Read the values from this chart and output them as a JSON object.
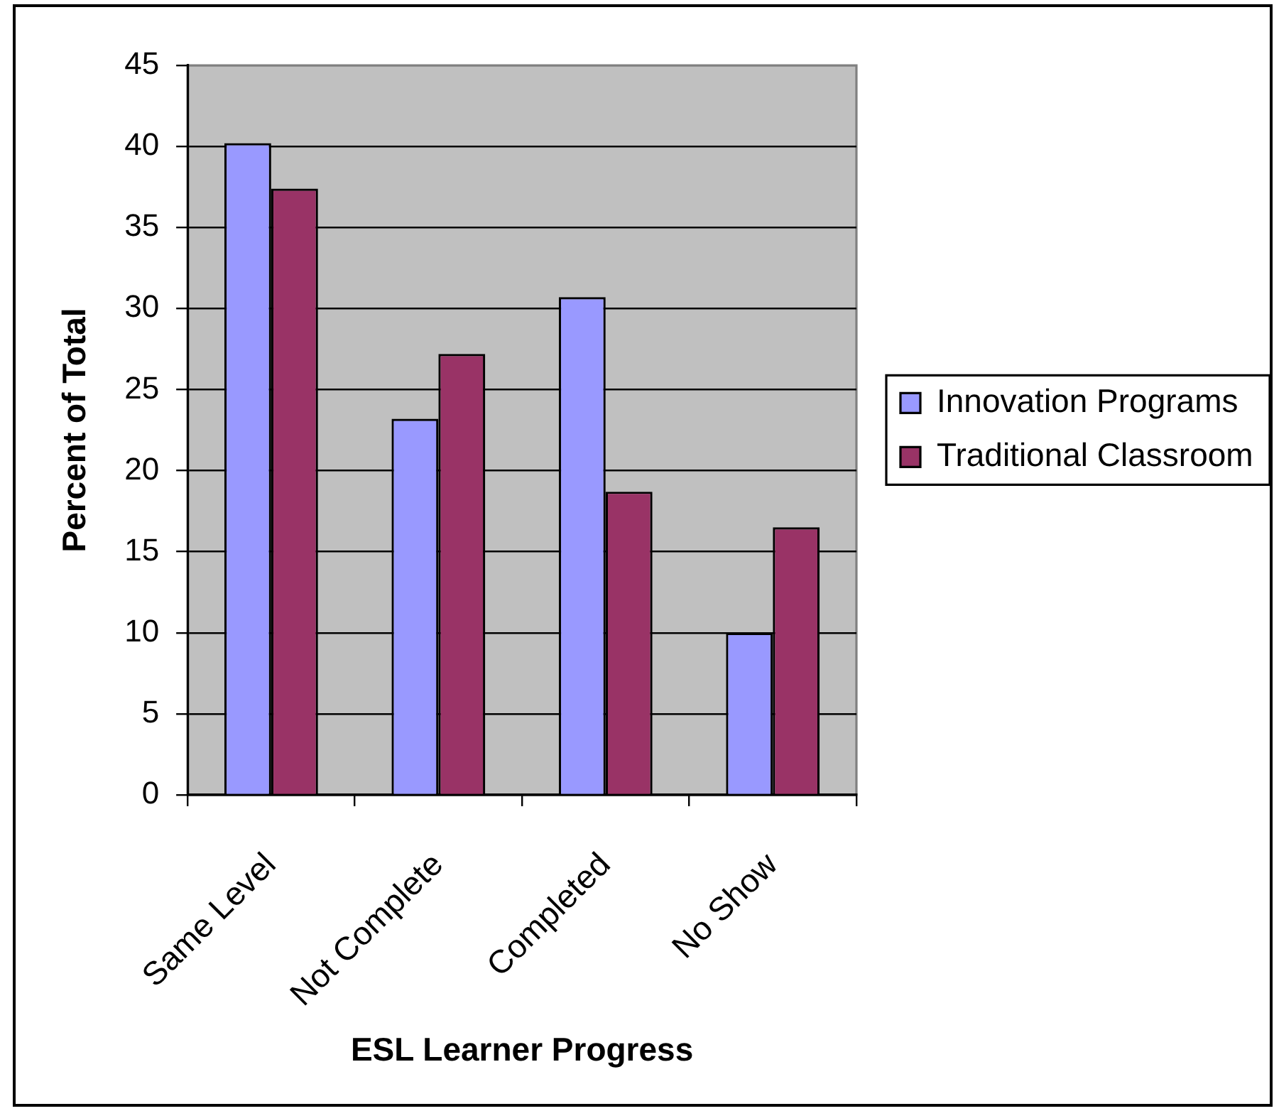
{
  "chart_data": {
    "type": "bar",
    "xlabel": "ESL Learner Progress",
    "ylabel": "Percent of Total",
    "categories": [
      "Same Level",
      "Not Complete",
      "Completed",
      "No Show"
    ],
    "series": [
      {
        "name": "Innovation Programs",
        "color": "#9999ff",
        "values": [
          40.2,
          23.2,
          30.7,
          10.0
        ]
      },
      {
        "name": "Traditional Classroom",
        "color": "#993366",
        "values": [
          37.4,
          27.2,
          18.7,
          16.5
        ]
      }
    ],
    "ylim": [
      0,
      45
    ],
    "yticks": [
      0,
      5,
      10,
      15,
      20,
      25,
      30,
      35,
      40,
      45
    ],
    "grid": "y",
    "legend": "right"
  }
}
